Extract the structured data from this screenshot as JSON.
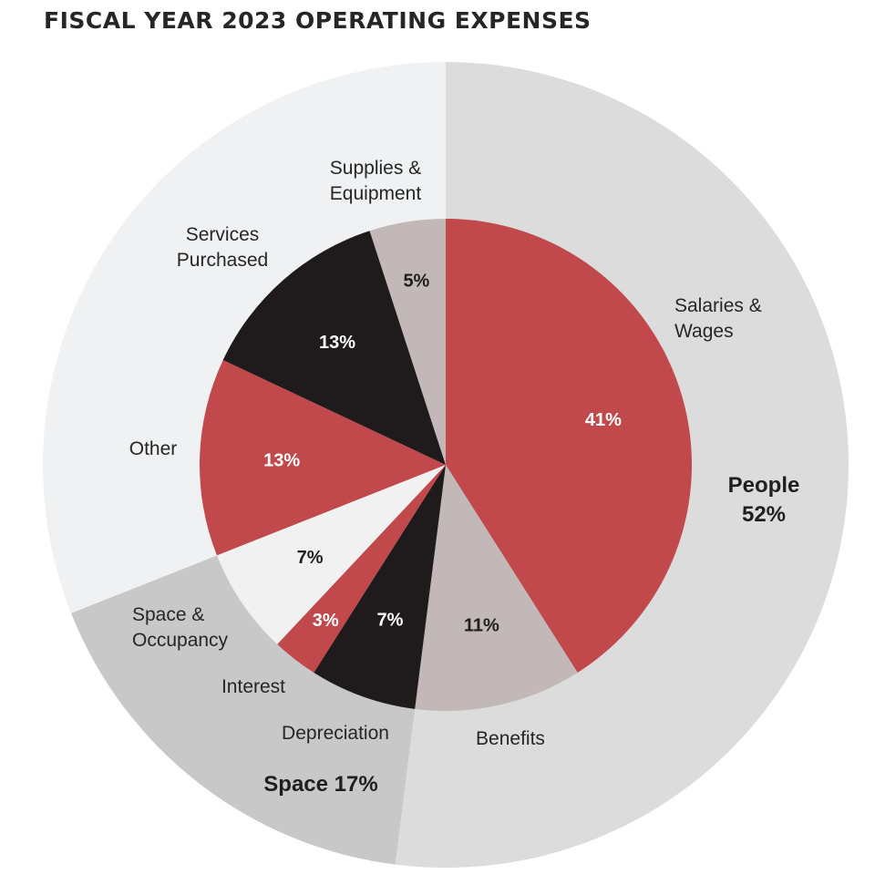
{
  "title": "FISCAL YEAR 2023 OPERATING EXPENSES",
  "chart_data": {
    "type": "pie",
    "title": "FISCAL YEAR 2023 OPERATING EXPENSES",
    "inner": [
      {
        "name": "Salaries & Wages",
        "value": 41,
        "label": "41%",
        "color": "#c1484b",
        "text_color": "#ffffff"
      },
      {
        "name": "Benefits",
        "value": 11,
        "label": "11%",
        "color": "#c2b8b7",
        "text_color": "#1f1f1f"
      },
      {
        "name": "Depreciation",
        "value": 7,
        "label": "7%",
        "color": "#1f1a1b",
        "text_color": "#ffffff"
      },
      {
        "name": "Interest",
        "value": 3,
        "label": "3%",
        "color": "#c1484b",
        "text_color": "#ffffff"
      },
      {
        "name": "Space & Occupancy",
        "value": 7,
        "label": "7%",
        "color": "#f1f1f1",
        "text_color": "#1f1f1f"
      },
      {
        "name": "Other",
        "value": 13,
        "label": "13%",
        "color": "#c1484b",
        "text_color": "#ffffff"
      },
      {
        "name": "Services Purchased",
        "value": 13,
        "label": "13%",
        "color": "#1f1a1b",
        "text_color": "#ffffff"
      },
      {
        "name": "Supplies & Equipment",
        "value": 5,
        "label": "5%",
        "color": "#c2b8b7",
        "text_color": "#1f1f1f"
      }
    ],
    "outer": [
      {
        "name": "People",
        "value": 52,
        "label": "People 52%",
        "color": "#dcdcdc"
      },
      {
        "name": "Space",
        "value": 17,
        "label": "Space 17%",
        "color": "#c8c8c8"
      },
      {
        "name": "Other",
        "value": 31,
        "label": "",
        "color": "#f0f1f2"
      }
    ]
  },
  "category_labels": {
    "salaries_wages": [
      "Salaries &",
      "Wages"
    ],
    "benefits": [
      "Benefits"
    ],
    "depreciation": [
      "Depreciation"
    ],
    "interest": [
      "Interest"
    ],
    "space_occupancy": [
      "Space &",
      "Occupancy"
    ],
    "other": [
      "Other"
    ],
    "services_purchased": [
      "Services",
      "Purchased"
    ],
    "supplies_equipment": [
      "Supplies &",
      "Equipment"
    ]
  },
  "group_labels": {
    "people": [
      "People",
      "52%"
    ],
    "space": [
      "Space 17%"
    ]
  }
}
